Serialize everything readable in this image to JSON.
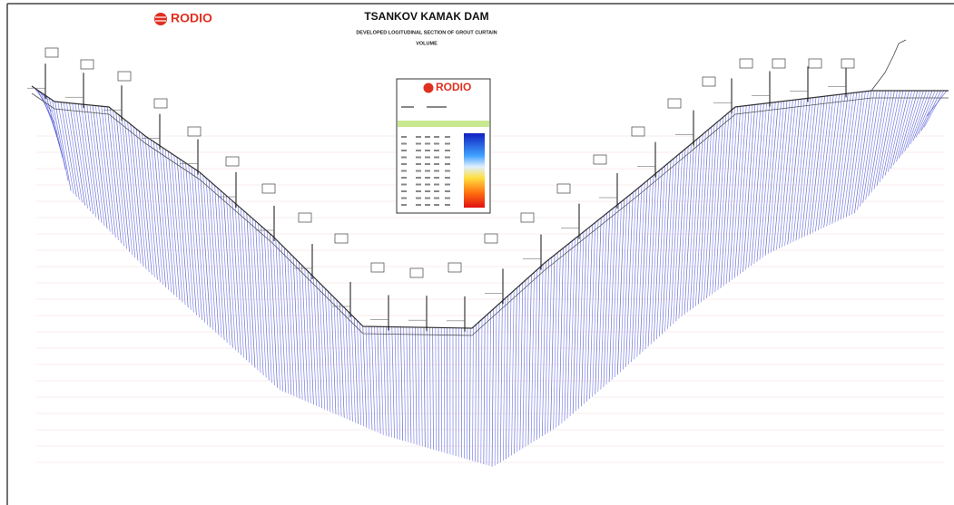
{
  "logo": "RODIO",
  "header": {
    "title": "TSANKOV KAMAK DAM",
    "subtitle": "DEVELOPED LOGITUDINAL SECTION OF GROUT CURTAIN",
    "caption": "VOLUME"
  },
  "legend": {
    "logo": "RODIO"
  }
}
